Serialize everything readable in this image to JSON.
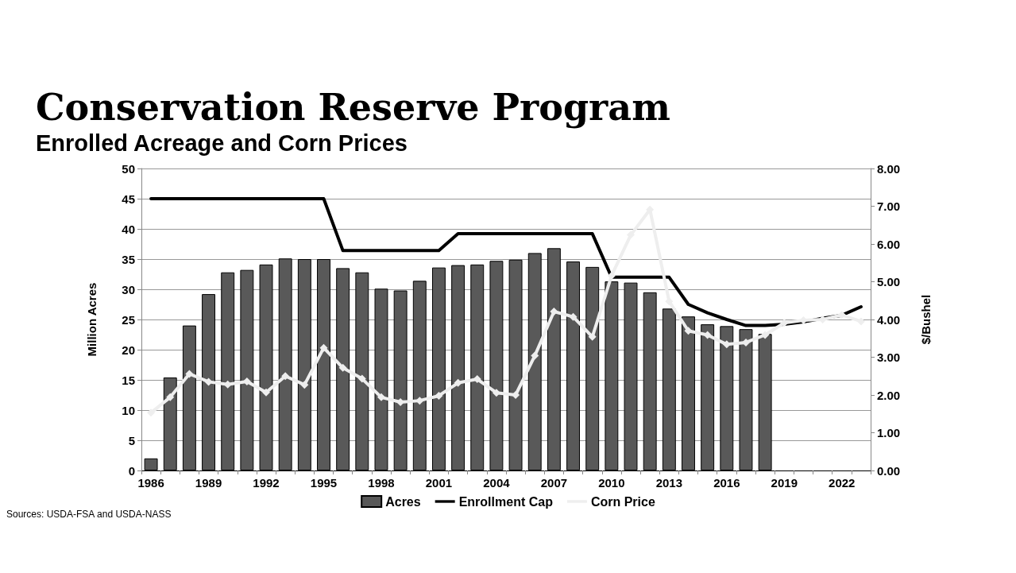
{
  "chart_data": {
    "type": "bar",
    "title": "Conservation Reserve Program",
    "subtitle": "Enrolled Acreage and Corn Prices",
    "ylabel": "Million Acres",
    "y2label": "$/Bushel",
    "categories": [
      "1986",
      null,
      null,
      "1989",
      null,
      null,
      "1992",
      null,
      null,
      "1995",
      null,
      null,
      "1998",
      null,
      null,
      "2001",
      null,
      null,
      "2004",
      null,
      null,
      "2007",
      null,
      null,
      "2010",
      null,
      null,
      "2013",
      null,
      null,
      "2016",
      null,
      null,
      "2019",
      null,
      null,
      "2022",
      null
    ],
    "series": [
      {
        "name": "Acres",
        "color": "#595959",
        "values": [
          2.0,
          15.4,
          24.0,
          29.2,
          32.8,
          33.2,
          34.1,
          35.1,
          35.0,
          35.0,
          33.5,
          32.8,
          30.1,
          29.8,
          31.4,
          33.6,
          34.0,
          34.1,
          34.7,
          34.9,
          36.0,
          36.8,
          34.6,
          33.7,
          31.3,
          31.1,
          29.5,
          26.8,
          25.5,
          24.2,
          23.9,
          23.4,
          22.6,
          null,
          null,
          null,
          null,
          null
        ]
      },
      {
        "name": "Enrollment Cap",
        "type": "line",
        "color": "#000000",
        "marker": "none",
        "values": [
          45,
          45,
          45,
          45,
          45,
          45,
          45,
          45,
          45,
          45,
          36.4,
          36.4,
          36.4,
          36.4,
          36.4,
          36.4,
          39.2,
          39.2,
          39.2,
          39.2,
          39.2,
          39.2,
          39.2,
          39.2,
          32,
          32,
          32,
          32,
          27.5,
          26.1,
          25,
          24,
          24,
          24.2,
          24.6,
          25.2,
          25.7,
          27.1
        ]
      },
      {
        "name": "Corn Price",
        "type": "line",
        "axis": "y2",
        "color": "#eeeeee",
        "marker": "diamond",
        "values": [
          1.53,
          1.94,
          2.56,
          2.35,
          2.28,
          2.36,
          2.07,
          2.5,
          2.27,
          3.25,
          2.72,
          2.43,
          1.94,
          1.81,
          1.85,
          1.98,
          2.32,
          2.42,
          2.06,
          2.0,
          3.04,
          4.21,
          4.07,
          3.54,
          5.16,
          6.24,
          6.91,
          4.48,
          3.7,
          3.59,
          3.34,
          3.39,
          3.59,
          3.91,
          3.98,
          4.0,
          4.12,
          3.95
        ]
      }
    ],
    "ylim": [
      0,
      50
    ],
    "yticks": [
      0,
      5,
      10,
      15,
      20,
      25,
      30,
      35,
      40,
      45,
      50
    ],
    "y2lim": [
      0,
      8
    ],
    "y2ticks": [
      {
        "value": 0,
        "label": "0.00"
      },
      {
        "value": 1,
        "label": "1.00"
      },
      {
        "value": 2,
        "label": "2.00"
      },
      {
        "value": 3,
        "label": "3.00"
      },
      {
        "value": 4,
        "label": "4.00"
      },
      {
        "value": 5,
        "label": "5.00"
      },
      {
        "value": 6,
        "label": "6.00"
      },
      {
        "value": 7,
        "label": "7.00"
      },
      {
        "value": 8,
        "label": "8.00"
      }
    ],
    "grid": "y",
    "legend": "bottom",
    "annotations": [
      "Sources: USDA-FSA and USDA-NASS"
    ]
  }
}
